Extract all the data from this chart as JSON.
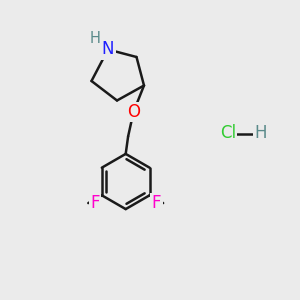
{
  "background_color": "#ebebeb",
  "bond_color": "#1a1a1a",
  "N_color": "#2020FF",
  "H_color": "#5a8a8a",
  "O_color": "#FF0000",
  "F_color": "#FF00CC",
  "Cl_color": "#33CC33",
  "HCl_H_color": "#5a8a8a",
  "line_width": 1.8,
  "font_size_atom": 11.5,
  "xlim": [
    0,
    10
  ],
  "ylim": [
    0,
    10
  ]
}
